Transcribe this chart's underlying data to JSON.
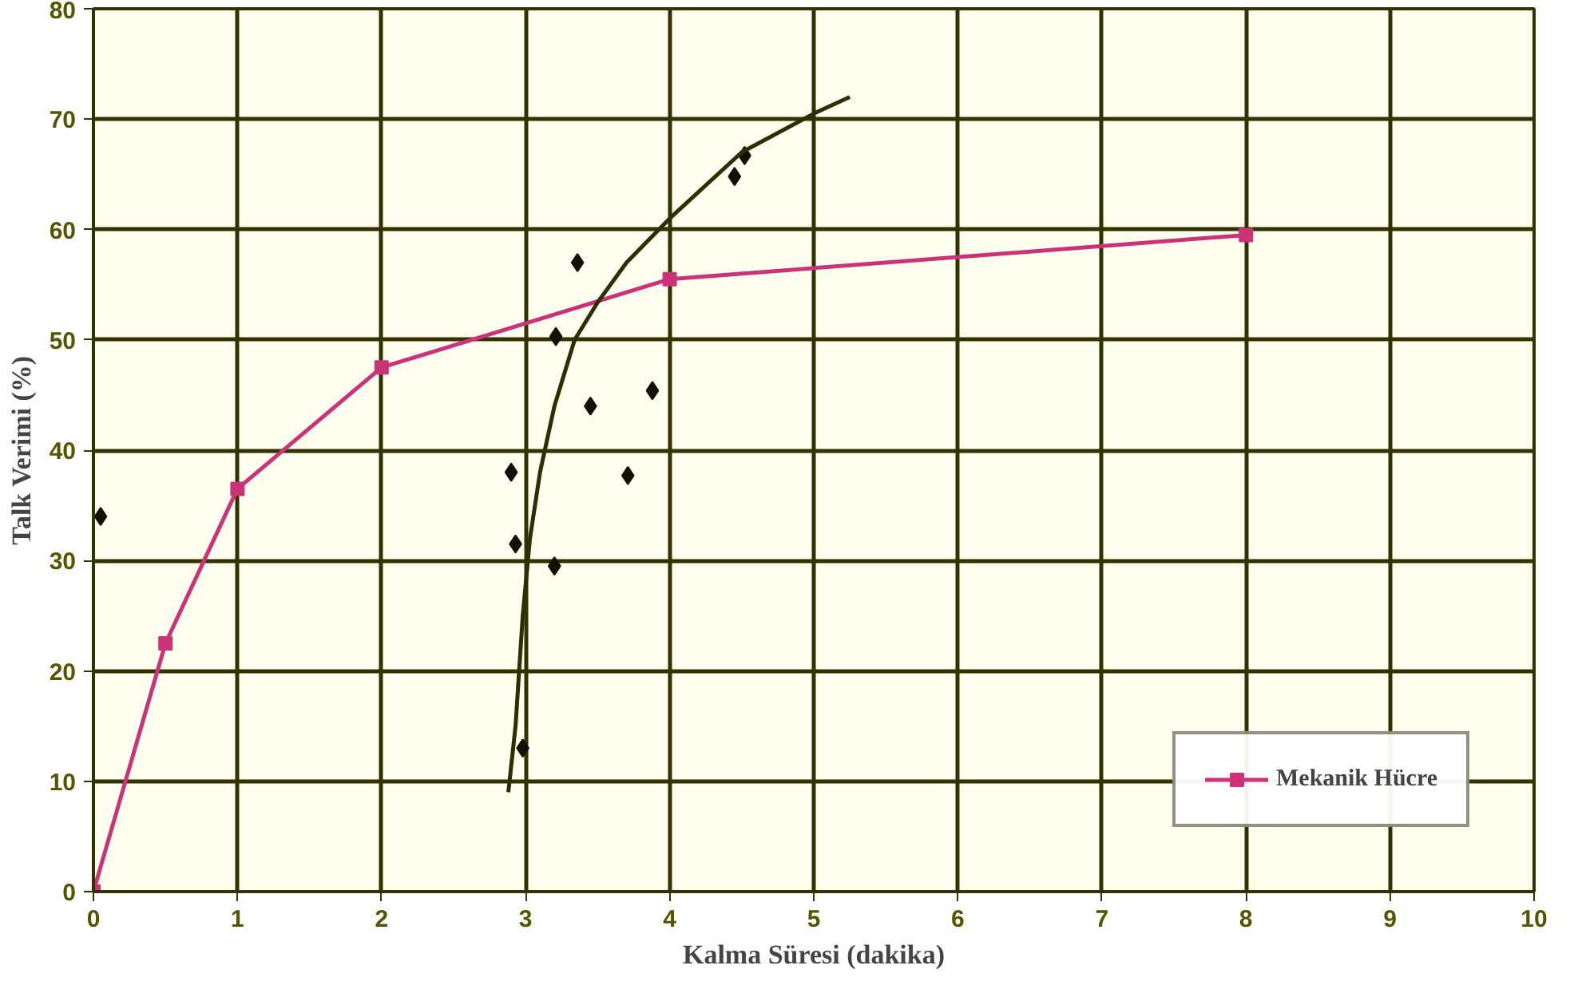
{
  "chart_data": {
    "type": "line",
    "xlabel": "Kalma Süresi (dakika)",
    "ylabel": "Talk Verimi (%)",
    "xlim": [
      0,
      10
    ],
    "ylim": [
      0,
      80
    ],
    "xticks": [
      0,
      1,
      2,
      3,
      4,
      5,
      6,
      7,
      8,
      9,
      10
    ],
    "yticks": [
      0,
      10,
      20,
      30,
      40,
      50,
      60,
      70,
      80
    ],
    "grid": true,
    "legend": "bottom right",
    "series": [
      {
        "name": "Mekanik Hücre",
        "marker": "square",
        "color": "#cc3377",
        "x": [
          0,
          0.5,
          1,
          2,
          4,
          8
        ],
        "values": [
          0,
          22.5,
          36.5,
          47.5,
          55.5,
          59.5
        ]
      },
      {
        "type": "scatter",
        "marker": "diamond",
        "color": "#111100",
        "x": [
          0.05,
          2.9,
          2.93,
          2.98,
          3.2,
          3.21,
          3.36,
          3.45,
          3.71,
          3.88,
          4.45,
          4.52
        ],
        "values": [
          34,
          38,
          31.5,
          13,
          29.5,
          50.3,
          57,
          44,
          37.7,
          45.4,
          64.8,
          66.7
        ]
      },
      {
        "type": "line",
        "marker": "none",
        "color": "#2b3000",
        "x": [
          2.88,
          2.93,
          2.98,
          3.03,
          3.1,
          3.2,
          3.34,
          3.5,
          3.7,
          4,
          4.5,
          5,
          5.25
        ],
        "values": [
          9,
          15,
          25,
          32,
          38,
          44,
          50,
          53.4,
          57,
          61,
          67,
          70.5,
          72
        ]
      }
    ]
  }
}
